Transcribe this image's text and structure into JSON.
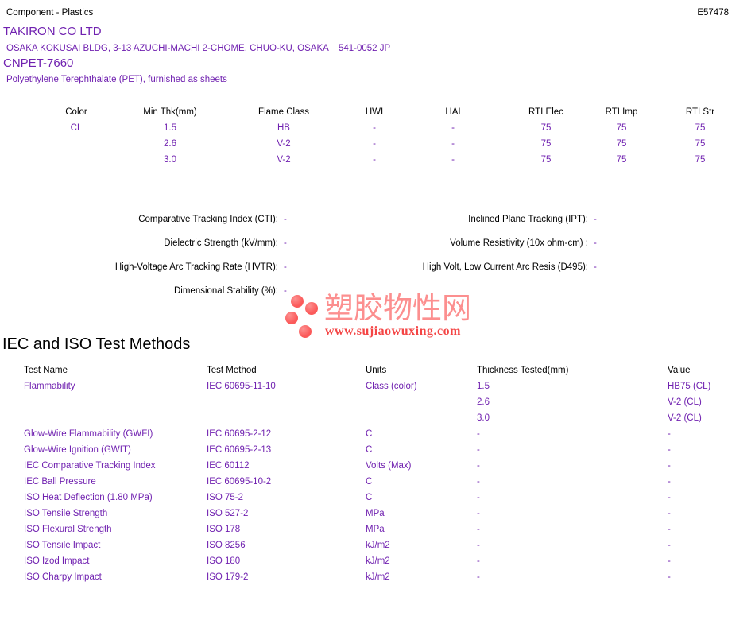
{
  "header": {
    "category": "Component - Plastics",
    "file_number": "E57478",
    "company": "TAKIRON CO LTD",
    "address": "OSAKA KOKUSAI BLDG, 3-13 AZUCHI-MACHI 2-CHOME, CHUO-KU, OSAKA    541-0052 JP",
    "product": "CNPET-7660",
    "description": "Polyethylene Terephthalate (PET), furnished as sheets"
  },
  "ratings_table": {
    "headers": [
      "Color",
      "Min Thk(mm)",
      "Flame Class",
      "HWI",
      "HAI",
      "RTI Elec",
      "RTI Imp",
      "RTI Str"
    ],
    "rows": [
      [
        "CL",
        "1.5",
        "HB",
        "-",
        "-",
        "75",
        "75",
        "75"
      ],
      [
        "",
        "2.6",
        "V-2",
        "-",
        "-",
        "75",
        "75",
        "75"
      ],
      [
        "",
        "3.0",
        "V-2",
        "-",
        "-",
        "75",
        "75",
        "75"
      ]
    ]
  },
  "electrical": {
    "rows": [
      {
        "left_label": "Comparative Tracking Index (CTI):",
        "left_value": "-",
        "right_label": "Inclined Plane Tracking (IPT):",
        "right_value": "-"
      },
      {
        "left_label": "Dielectric Strength (kV/mm):",
        "left_value": "-",
        "right_label": "Volume Resistivity (10x ohm-cm) :",
        "right_value": "-"
      },
      {
        "left_label": "High-Voltage Arc Tracking Rate (HVTR):",
        "left_value": "-",
        "right_label": "High Volt, Low Current Arc Resis (D495):",
        "right_value": "-"
      },
      {
        "left_label": "Dimensional Stability (%):",
        "left_value": "-",
        "right_label": "",
        "right_value": ""
      }
    ]
  },
  "watermark": {
    "site_name": "塑胶物性网",
    "site_url": "www.sujiaowuxing.com",
    "logo_color": "#fb5a5a",
    "name_color": "#fc8f8f",
    "url_color": "#f44545"
  },
  "test_methods": {
    "title": "IEC and ISO Test Methods",
    "headers": [
      "Test Name",
      "Test Method",
      "Units",
      "Thickness Tested(mm)",
      "Value"
    ],
    "rows": [
      [
        "Flammability",
        "IEC 60695-11-10",
        "Class (color)",
        "1.5",
        "HB75 (CL)"
      ],
      [
        "",
        "",
        "",
        "2.6",
        "V-2 (CL)"
      ],
      [
        "",
        "",
        "",
        "3.0",
        "V-2 (CL)"
      ],
      [
        "Glow-Wire Flammability (GWFI)",
        "IEC 60695-2-12",
        "C",
        "-",
        "-"
      ],
      [
        "Glow-Wire Ignition (GWIT)",
        "IEC 60695-2-13",
        "C",
        "-",
        "-"
      ],
      [
        "IEC Comparative Tracking Index",
        "IEC 60112",
        "Volts (Max)",
        "-",
        "-"
      ],
      [
        "IEC Ball Pressure",
        "IEC 60695-10-2",
        "C",
        "-",
        "-"
      ],
      [
        "ISO Heat Deflection (1.80 MPa)",
        "ISO 75-2",
        "C",
        "-",
        "-"
      ],
      [
        "ISO Tensile Strength",
        "ISO 527-2",
        "MPa",
        "-",
        "-"
      ],
      [
        "ISO Flexural Strength",
        "ISO 178",
        "MPa",
        "-",
        "-"
      ],
      [
        "ISO Tensile Impact",
        "ISO 8256",
        "kJ/m2",
        "-",
        "-"
      ],
      [
        "ISO Izod Impact",
        "ISO 180",
        "kJ/m2",
        "-",
        "-"
      ],
      [
        "ISO Charpy Impact",
        "ISO 179-2",
        "kJ/m2",
        "-",
        "-"
      ]
    ]
  },
  "colors": {
    "accent_purple": "#7021b0",
    "text_black": "#000000"
  }
}
